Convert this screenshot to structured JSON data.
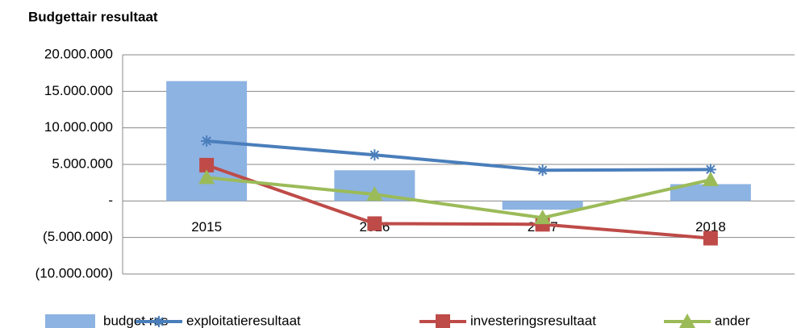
{
  "chart_data": {
    "type": "combo",
    "title": "Budgettair resultaat",
    "categories": [
      "2015",
      "2016",
      "2017",
      "2018"
    ],
    "series": [
      {
        "name": "budget res",
        "type": "bar",
        "color": "#8db3e2",
        "values": [
          16400000,
          4200000,
          -1200000,
          2300000
        ]
      },
      {
        "name": "exploitatieresultaat",
        "type": "line",
        "marker": "star",
        "color": "#4a7ebb",
        "values": [
          8200000,
          6300000,
          4200000,
          4300000
        ]
      },
      {
        "name": "investeringsresultaat",
        "type": "line",
        "marker": "square",
        "color": "#be4b48",
        "values": [
          4900000,
          -3100000,
          -3200000,
          -5100000
        ]
      },
      {
        "name": "ander",
        "type": "line",
        "marker": "triangle",
        "color": "#9bbb59",
        "values": [
          3200000,
          900000,
          -2300000,
          2900000
        ]
      }
    ],
    "ylim": [
      -10000000,
      20000000
    ],
    "yticks": [
      {
        "value": 20000000,
        "label": "20.000.000"
      },
      {
        "value": 15000000,
        "label": "15.000.000"
      },
      {
        "value": 10000000,
        "label": "10.000.000"
      },
      {
        "value": 5000000,
        "label": "5.000.000"
      },
      {
        "value": 0,
        "label": "-"
      },
      {
        "value": -5000000,
        "label": "(5.000.000)"
      },
      {
        "value": -10000000,
        "label": "(10.000.000)"
      }
    ],
    "grid": true,
    "legend": "bottom"
  }
}
